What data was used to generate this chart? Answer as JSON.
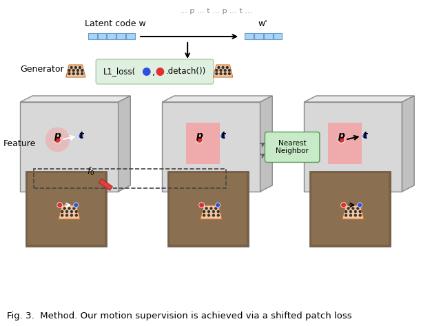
{
  "title_top": "... p ... t ... p ... t ...",
  "caption": "Fig. 3.  Method. Our motion supervision is achieved via a shifted patch loss",
  "bg_color": "#ffffff",
  "latent_label": "Latent code w",
  "wprime_label": "w'",
  "generator_label": "Generator",
  "feature_label": "Feature",
  "l1_loss_label": "L1_loss(",
  "detach_label": ".detach())",
  "nearest_neighbor_label": "Nearest\nNeighbor",
  "f0_label": "f₀",
  "box_color": "#d0d0d0",
  "box_edge_color": "#888888",
  "pink_patch_color": "#f5a0a0",
  "green_box_color": "#c8eac8",
  "latent_box_color": "#aad4f5",
  "generator_color": "#f5c8a0",
  "p_color": "#e03030",
  "t_color": "#3050e0",
  "arrow_color": "#000000",
  "dashed_color": "#555555"
}
